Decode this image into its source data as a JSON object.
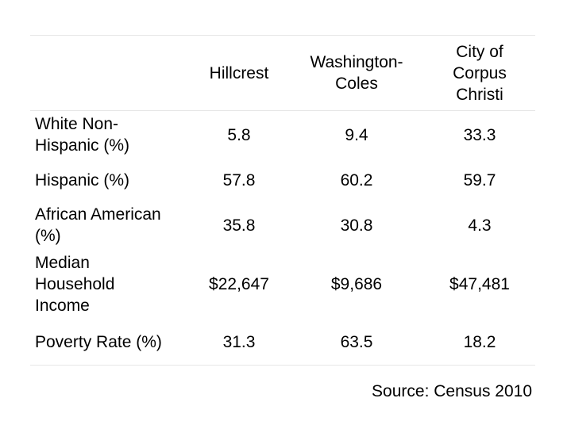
{
  "table": {
    "headers": [
      "",
      "Hillcrest",
      "Washington-\nColes",
      "City of\nCorpus\nChristi"
    ],
    "rows": [
      {
        "label": "White Non-\nHispanic (%)",
        "values": [
          "5.8",
          "9.4",
          "33.3"
        ]
      },
      {
        "label": "Hispanic (%)",
        "values": [
          "57.8",
          "60.2",
          "59.7"
        ]
      },
      {
        "label": "African American\n(%)",
        "values": [
          "35.8",
          "30.8",
          "4.3"
        ]
      },
      {
        "label": "Median\nHousehold\nIncome",
        "values": [
          "$22,647",
          "$9,686",
          "$47,481"
        ]
      },
      {
        "label": "Poverty Rate (%)",
        "values": [
          "31.3",
          "63.5",
          "18.2"
        ]
      }
    ]
  },
  "source": "Source: Census 2010"
}
